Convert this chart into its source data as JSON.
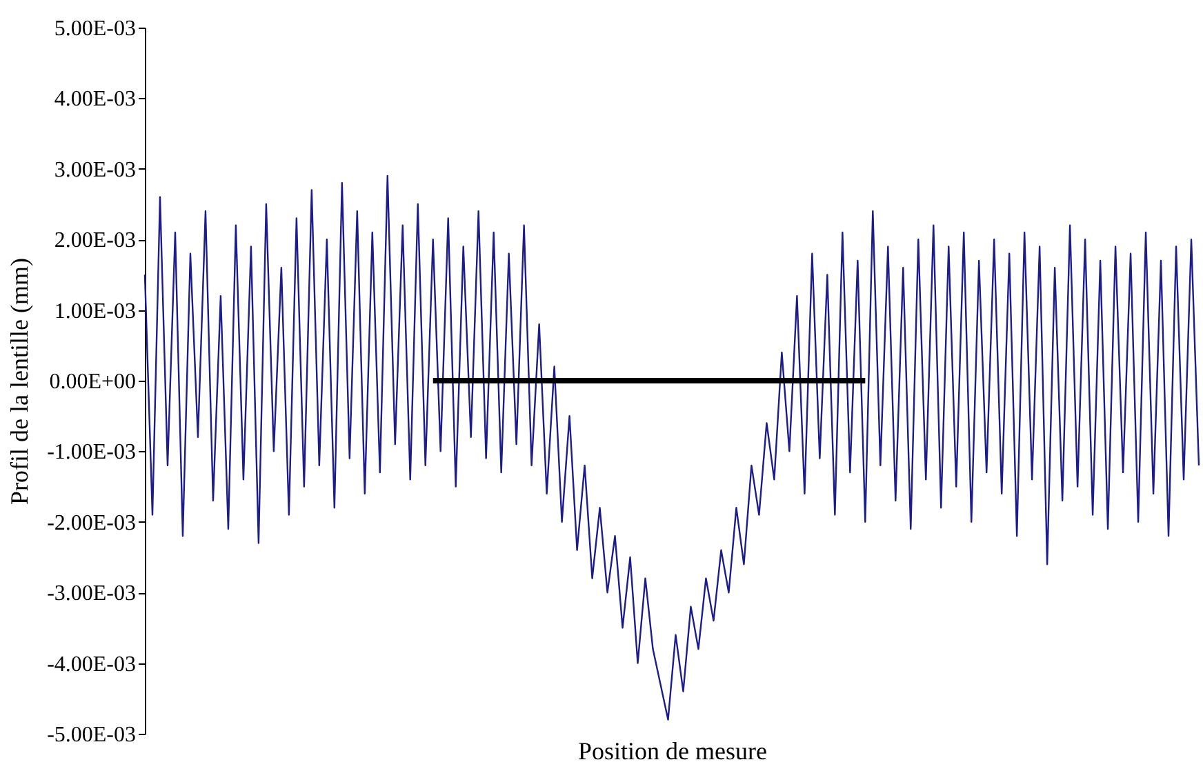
{
  "chart_data": {
    "type": "line",
    "xlabel": "Position de mesure",
    "ylabel": "Profil de la lentille (mm)",
    "categories": [
      null,
      null,
      null,
      null,
      null,
      null,
      null,
      null,
      null,
      null,
      null,
      null,
      null,
      null,
      null,
      null,
      null,
      null,
      null,
      null,
      null,
      null,
      null,
      null,
      null,
      null,
      null,
      null,
      null,
      null,
      null,
      null,
      null,
      null,
      null,
      null,
      null,
      null,
      null,
      null,
      null,
      null,
      null,
      null,
      null,
      null,
      null,
      null,
      null,
      null,
      null,
      null,
      null,
      null,
      null,
      null,
      null,
      null,
      null,
      null,
      null,
      null,
      null,
      null,
      null,
      null,
      null,
      null,
      null,
      null,
      null,
      null,
      null,
      null,
      null,
      null,
      null,
      null,
      null,
      null,
      null,
      null,
      null,
      null,
      null,
      null,
      null,
      null,
      null,
      null,
      null,
      null,
      null,
      null,
      null,
      null,
      null,
      null,
      null,
      null,
      null,
      null,
      null,
      null,
      null,
      null,
      null,
      null,
      null,
      null,
      null,
      null,
      null,
      null,
      null,
      null,
      null,
      null,
      null,
      null,
      null,
      null,
      null,
      null,
      null,
      null,
      null,
      null,
      null,
      null,
      null,
      null,
      null,
      null,
      null,
      null,
      null,
      null,
      null,
      null
    ],
    "series": [
      {
        "color": "#1c1c8c",
        "values": [
          0.0015,
          -0.0019,
          0.0026,
          -0.0012,
          0.0021,
          -0.0022,
          0.0018,
          -0.0008,
          0.0024,
          -0.0017,
          0.0012,
          -0.0021,
          0.0022,
          -0.0014,
          0.0019,
          -0.0023,
          0.0025,
          -0.001,
          0.0016,
          -0.0019,
          0.0023,
          -0.0015,
          0.0027,
          -0.0012,
          0.002,
          -0.0018,
          0.0028,
          -0.0011,
          0.0024,
          -0.0016,
          0.0021,
          -0.0013,
          0.0029,
          -0.0009,
          0.0022,
          -0.0014,
          0.0025,
          -0.0012,
          0.002,
          -0.001,
          0.0023,
          -0.0015,
          0.0019,
          -0.0008,
          0.0024,
          -0.0011,
          0.0021,
          -0.0013,
          0.0018,
          -0.0009,
          0.0022,
          -0.0012,
          0.0008,
          -0.0016,
          0.0002,
          -0.002,
          -0.0005,
          -0.0024,
          -0.0012,
          -0.0028,
          -0.0018,
          -0.003,
          -0.0022,
          -0.0035,
          -0.0025,
          -0.004,
          -0.0028,
          -0.0038,
          -0.0043,
          -0.0048,
          -0.0036,
          -0.0044,
          -0.0032,
          -0.0038,
          -0.0028,
          -0.0034,
          -0.0024,
          -0.003,
          -0.0018,
          -0.0026,
          -0.0012,
          -0.0019,
          -0.0006,
          -0.0014,
          0.0004,
          -0.001,
          0.0012,
          -0.0016,
          0.0018,
          -0.0011,
          0.0015,
          -0.0019,
          0.0021,
          -0.0013,
          0.0017,
          -0.002,
          0.0024,
          -0.0012,
          0.0019,
          -0.0017,
          0.0016,
          -0.0021,
          0.002,
          -0.0014,
          0.0022,
          -0.0018,
          0.0019,
          -0.0015,
          0.0021,
          -0.002,
          0.0017,
          -0.0013,
          0.002,
          -0.0016,
          0.0018,
          -0.0022,
          0.0021,
          -0.0014,
          0.0019,
          -0.0026,
          0.0016,
          -0.0017,
          0.0022,
          -0.0015,
          0.002,
          -0.0019,
          0.0017,
          -0.0021,
          0.0019,
          -0.0013,
          0.0018,
          -0.002,
          0.0021,
          -0.0016,
          0.0017,
          -0.0022,
          0.0019,
          -0.0014,
          0.002,
          -0.0012
        ]
      },
      {
        "color": "#000000",
        "values": [
          null,
          null,
          null,
          null,
          null,
          null,
          null,
          null,
          null,
          null,
          null,
          null,
          null,
          null,
          null,
          null,
          null,
          null,
          null,
          null,
          null,
          null,
          null,
          null,
          null,
          null,
          null,
          null,
          null,
          null,
          null,
          null,
          null,
          null,
          null,
          null,
          null,
          null,
          0,
          0,
          0,
          0,
          0,
          0,
          0,
          0,
          0,
          0,
          0,
          0,
          0,
          0,
          0,
          0,
          0,
          0,
          0,
          0,
          0,
          0,
          0,
          0,
          0,
          0,
          0,
          0,
          0,
          0,
          0,
          0,
          0,
          0,
          0,
          0,
          0,
          0,
          0,
          0,
          0,
          0,
          0,
          0,
          0,
          0,
          0,
          0,
          0,
          0,
          0,
          0,
          0,
          0,
          0,
          0,
          0,
          0,
          null,
          null,
          null,
          null,
          null,
          null,
          null,
          null,
          null,
          null,
          null,
          null,
          null,
          null,
          null,
          null,
          null,
          null,
          null,
          null,
          null,
          null,
          null,
          null,
          null,
          null,
          null,
          null,
          null,
          null,
          null,
          null,
          null,
          null,
          null,
          null,
          null,
          null,
          null,
          null,
          null,
          null,
          null,
          null
        ]
      }
    ],
    "ylim": [
      -0.005,
      0.005
    ],
    "yticks": [
      {
        "value": 0.005,
        "label": "5.00E-03"
      },
      {
        "value": 0.004,
        "label": "4.00E-03"
      },
      {
        "value": 0.003,
        "label": "3.00E-03"
      },
      {
        "value": 0.002,
        "label": "2.00E-03"
      },
      {
        "value": 0.001,
        "label": "1.00E-03"
      },
      {
        "value": 0,
        "label": "0.00E+00"
      },
      {
        "value": -0.001,
        "label": "-1.00E-03"
      },
      {
        "value": -0.002,
        "label": "-2.00E-03"
      },
      {
        "value": -0.003,
        "label": "-3.00E-03"
      },
      {
        "value": -0.004,
        "label": "-4.00E-03"
      },
      {
        "value": -0.005,
        "label": "-5.00E-03"
      }
    ],
    "tick_labels": "y",
    "grid": false
  }
}
